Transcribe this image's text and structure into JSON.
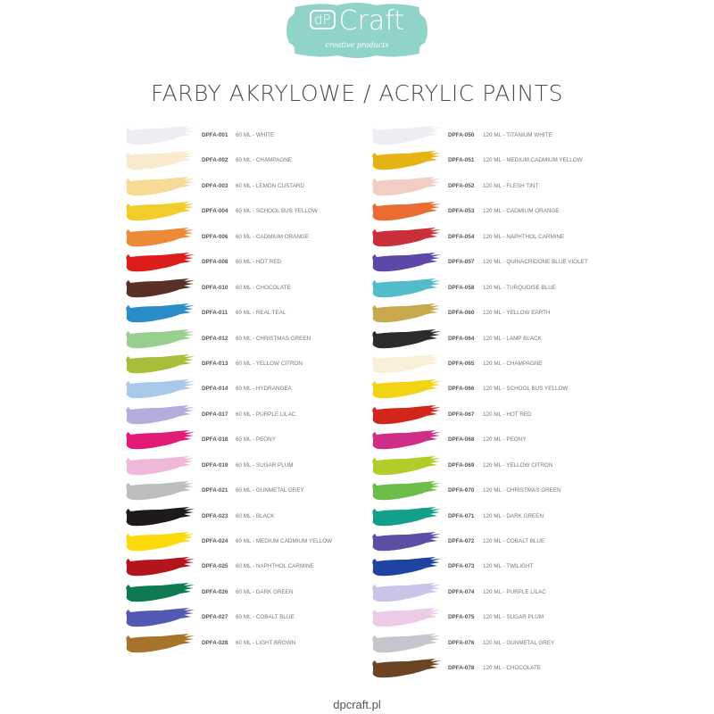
{
  "logo": {
    "dp": "dP",
    "brand": "Craft",
    "tagline": "creative products",
    "color": "#8fd3c9"
  },
  "title": "FARBY AKRYLOWE / ACRYLIC PAINTS",
  "left_column": [
    {
      "code": "DPFA-001",
      "desc": "60 ML - WHITE",
      "color": "#eceef1"
    },
    {
      "code": "DPFA-002",
      "desc": "60 ML - CHAMPAGNE",
      "color": "#f7ebcc"
    },
    {
      "code": "DPFA-003",
      "desc": "60 ML - LEMON CUSTARD",
      "color": "#f6da95"
    },
    {
      "code": "DPFA-004",
      "desc": "60 ML - SCHOOL BUS YELLOW",
      "color": "#f0cd2a"
    },
    {
      "code": "DPFA-006",
      "desc": "60 ML - CADMIUM ORANGE",
      "color": "#ec8a38"
    },
    {
      "code": "DPFA-008",
      "desc": "60 ML - HOT RED",
      "color": "#dd1c1c"
    },
    {
      "code": "DPFA-010",
      "desc": "60 ML - CHOCOLATE",
      "color": "#5a3026"
    },
    {
      "code": "DPFA-011",
      "desc": "60 ML - REAL TEAL",
      "color": "#2a8dc8"
    },
    {
      "code": "DPFA-012",
      "desc": "60 ML - CHRISTMAS GREEN",
      "color": "#96cf8e"
    },
    {
      "code": "DPFA-013",
      "desc": "60 ML - YELLOW CITRON",
      "color": "#a8bd38"
    },
    {
      "code": "DPFA-014",
      "desc": "60 ML - HYDRANGEA",
      "color": "#a8c9ea"
    },
    {
      "code": "DPFA-017",
      "desc": "60 ML - PURPLE LILAC",
      "color": "#b3addd"
    },
    {
      "code": "DPFA-018",
      "desc": "60 ML - PEONY",
      "color": "#e21b78"
    },
    {
      "code": "DPFA-019",
      "desc": "60 ML - SUGAR PLUM",
      "color": "#f0b8d8"
    },
    {
      "code": "DPFA-021",
      "desc": "60 ML - GUNMETAL GREY",
      "color": "#bdbdbd"
    },
    {
      "code": "DPFA-023",
      "desc": "60 ML - BLACK",
      "color": "#1e1a1c"
    },
    {
      "code": "DPFA-024",
      "desc": "60 ML - MEDIUM CADMIUM YELLOW",
      "color": "#fbd90a"
    },
    {
      "code": "DPFA-025",
      "desc": "60 ML - NAPHTHOL CARMINE",
      "color": "#b3141e"
    },
    {
      "code": "DPFA-026",
      "desc": "60 ML - DARK GREEN",
      "color": "#0d7a4f"
    },
    {
      "code": "DPFA-027",
      "desc": "60 ML - COBALT BLUE",
      "color": "#5358b3"
    },
    {
      "code": "DPFA-028",
      "desc": "60 ML - LIGHT BROWN",
      "color": "#a8742c"
    }
  ],
  "right_column": [
    {
      "code": "DPFA-050",
      "desc": "120 ML - TITANIUM WHITE",
      "color": "#eceef1"
    },
    {
      "code": "DPFA-051",
      "desc": "120 ML - MEDIUM CADMIUM YELLOW",
      "color": "#e6b412"
    },
    {
      "code": "DPFA-052",
      "desc": "120 ML - FLESH TINT",
      "color": "#f2cdc3"
    },
    {
      "code": "DPFA-053",
      "desc": "120 ML - CADMIUM ORANGE",
      "color": "#ea6c33"
    },
    {
      "code": "DPFA-054",
      "desc": "120 ML - NAPHTHOL CARMINE",
      "color": "#c9303a"
    },
    {
      "code": "DPFA-057",
      "desc": "120 ML - QUINACRIDONE BLUE VIOLET",
      "color": "#5d48a8"
    },
    {
      "code": "DPFA-058",
      "desc": "120 ML - TURQUOISE BLUE",
      "color": "#52bccb"
    },
    {
      "code": "DPFA-060",
      "desc": "120 ML - YELLOW EARTH",
      "color": "#c8a84e"
    },
    {
      "code": "DPFA-064",
      "desc": "120 ML - LAMP BLACK",
      "color": "#2e2c2b"
    },
    {
      "code": "DPFA-065",
      "desc": "120 ML - CHAMPAGNE",
      "color": "#f8efd6"
    },
    {
      "code": "DPFA-066",
      "desc": "120 ML - SCHOOL BUS YELLOW",
      "color": "#f2d414"
    },
    {
      "code": "DPFA-067",
      "desc": "120 ML - HOT RED",
      "color": "#d2261d"
    },
    {
      "code": "DPFA-068",
      "desc": "120 ML - PEONY",
      "color": "#cf2d86"
    },
    {
      "code": "DPFA-069",
      "desc": "120 ML - YELLOW CITRON",
      "color": "#b3cc2a"
    },
    {
      "code": "DPFA-070",
      "desc": "120 ML - CHRISTMAS GREEN",
      "color": "#6cbd4a"
    },
    {
      "code": "DPFA-071",
      "desc": "120 ML - DARK GREEN",
      "color": "#13a08a"
    },
    {
      "code": "DPFA-072",
      "desc": "120 ML - COBALT BLUE",
      "color": "#5a4fa4"
    },
    {
      "code": "DPFA-073",
      "desc": "120 ML - TWILIGHT",
      "color": "#1e42a0"
    },
    {
      "code": "DPFA-074",
      "desc": "120 ML - PURPLE LILAC",
      "color": "#c9c4e8"
    },
    {
      "code": "DPFA-075",
      "desc": "120 ML - SUGAR PLUM",
      "color": "#eccbe6"
    },
    {
      "code": "DPFA-076",
      "desc": "120 ML - GUNMETAL GREY",
      "color": "#c5c5cb"
    },
    {
      "code": "DPFA-078",
      "desc": "120 ML - CHOCOLATE",
      "color": "#6b4424"
    }
  ],
  "footer": "dpcraft.pl"
}
